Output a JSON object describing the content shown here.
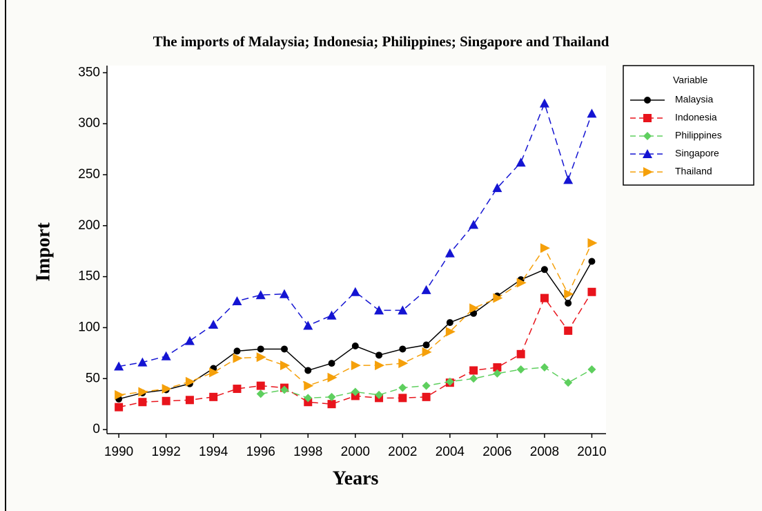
{
  "chart_data": {
    "type": "line",
    "title": "The imports of Malaysia; Indonesia; Philippines; Singapore and Thailand",
    "x_label": "Years",
    "y_label": "Import",
    "legend_title": "Variable",
    "x": [
      1990,
      1991,
      1992,
      1993,
      1994,
      1995,
      1996,
      1997,
      1998,
      1999,
      2000,
      2001,
      2002,
      2003,
      2004,
      2005,
      2006,
      2007,
      2008,
      2009,
      2010
    ],
    "xlim": [
      1989.5,
      2010.6
    ],
    "xticks": [
      1990,
      1992,
      1994,
      1996,
      1998,
      2000,
      2002,
      2004,
      2006,
      2008,
      2010
    ],
    "ylim": [
      -4,
      357
    ],
    "yticks": [
      0,
      50,
      100,
      150,
      200,
      250,
      300,
      350
    ],
    "legend": "upper right outside",
    "series": [
      {
        "name": "Malaysia",
        "color": "#000000",
        "marker": "circle",
        "linestyle": "solid",
        "values": [
          30,
          36,
          39,
          45,
          60,
          77,
          79,
          79,
          58,
          65,
          82,
          73,
          79,
          83,
          105,
          114,
          131,
          147,
          157,
          124,
          165
        ]
      },
      {
        "name": "Indonesia",
        "color": "#e8141c",
        "marker": "square",
        "linestyle": "dashed",
        "values": [
          22,
          27,
          28,
          29,
          32,
          40,
          43,
          41,
          27,
          25,
          33,
          31,
          31,
          32,
          46,
          58,
          61,
          74,
          129,
          97,
          135
        ]
      },
      {
        "name": "Philippines",
        "color": "#5ecf5e",
        "marker": "diamond",
        "linestyle": "dashed",
        "values": [
          null,
          null,
          null,
          null,
          null,
          null,
          35,
          39,
          31,
          32,
          37,
          34,
          41,
          43,
          47,
          50,
          55,
          59,
          61,
          46,
          59
        ]
      },
      {
        "name": "Singapore",
        "color": "#1414d2",
        "marker": "triangle-up",
        "linestyle": "dashed",
        "values": [
          62,
          66,
          72,
          87,
          103,
          126,
          132,
          133,
          102,
          112,
          135,
          117,
          117,
          137,
          173,
          201,
          237,
          262,
          320,
          245,
          310
        ]
      },
      {
        "name": "Thailand",
        "color": "#f5a00a",
        "marker": "triangle-right",
        "linestyle": "dashed",
        "values": [
          34,
          37,
          40,
          47,
          56,
          70,
          71,
          63,
          43,
          51,
          63,
          63,
          65,
          76,
          96,
          119,
          129,
          144,
          178,
          133,
          183
        ]
      }
    ]
  }
}
